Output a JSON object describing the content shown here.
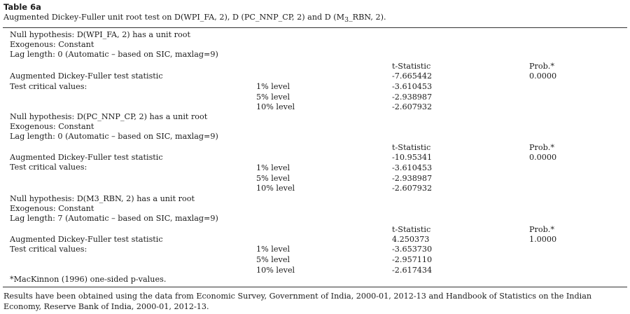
{
  "table": {
    "label": "Table 6a",
    "caption_html": "Augmented Dickey-Fuller unit root test on D(WPI_FA, 2), D (PC_NNP_CP, 2) and D (M<sub>3</sub>_RBN, 2).",
    "blocks": [
      {
        "null_hypothesis": "Null hypothesis: D(WPI_FA, 2) has a unit root",
        "exogenous": "Exogenous: Constant",
        "lag_length": "Lag length: 0 (Automatic – based on SIC, maxlag=9)",
        "t_stat_header": "t-Statistic",
        "prob_header": "Prob.*",
        "adf_label": "Augmented Dickey-Fuller test statistic",
        "adf_t": "-7.665442",
        "adf_prob": "0.0000",
        "critical_label": "Test critical values:",
        "levels": [
          {
            "level": "1% level",
            "value": "-3.610453"
          },
          {
            "level": "5% level",
            "value": "-2.938987"
          },
          {
            "level": "10% level",
            "value": "-2.607932"
          }
        ]
      },
      {
        "null_hypothesis": "Null hypothesis: D(PC_NNP_CP, 2) has a unit root",
        "exogenous": "Exogenous: Constant",
        "lag_length": "Lag length: 0 (Automatic – based on SIC, maxlag=9)",
        "t_stat_header": "t-Statistic",
        "prob_header": "Prob.*",
        "adf_label": "Augmented Dickey-Fuller test statistic",
        "adf_t": "-10.95341",
        "adf_prob": "0.0000",
        "critical_label": "Test critical values:",
        "levels": [
          {
            "level": "1% level",
            "value": "-3.610453"
          },
          {
            "level": "5% level",
            "value": "-2.938987"
          },
          {
            "level": "10% level",
            "value": "-2.607932"
          }
        ]
      },
      {
        "null_hypothesis": "Null hypothesis: D(M3_RBN, 2) has a unit root",
        "exogenous": "Exogenous: Constant",
        "lag_length": "Lag length: 7 (Automatic – based on SIC, maxlag=9)",
        "t_stat_header": "t-Statistic",
        "prob_header": "Prob.*",
        "adf_label": "Augmented Dickey-Fuller test statistic",
        "adf_t": "4.250373",
        "adf_prob": "1.0000",
        "critical_label": "Test critical values:",
        "levels": [
          {
            "level": "1% level",
            "value": "-3.653730"
          },
          {
            "level": "5% level",
            "value": "-2.957110"
          },
          {
            "level": "10% level",
            "value": "-2.617434"
          }
        ]
      }
    ],
    "footnote": "*MacKinnon (1996) one-sided p-values.",
    "source_note": "Results have been obtained using the data from Economic Survey, Government of India, 2000-01, 2012-13 and Handbook of Statistics on the Indian Economy, Reserve Bank of India, 2000-01, 2012-13."
  }
}
